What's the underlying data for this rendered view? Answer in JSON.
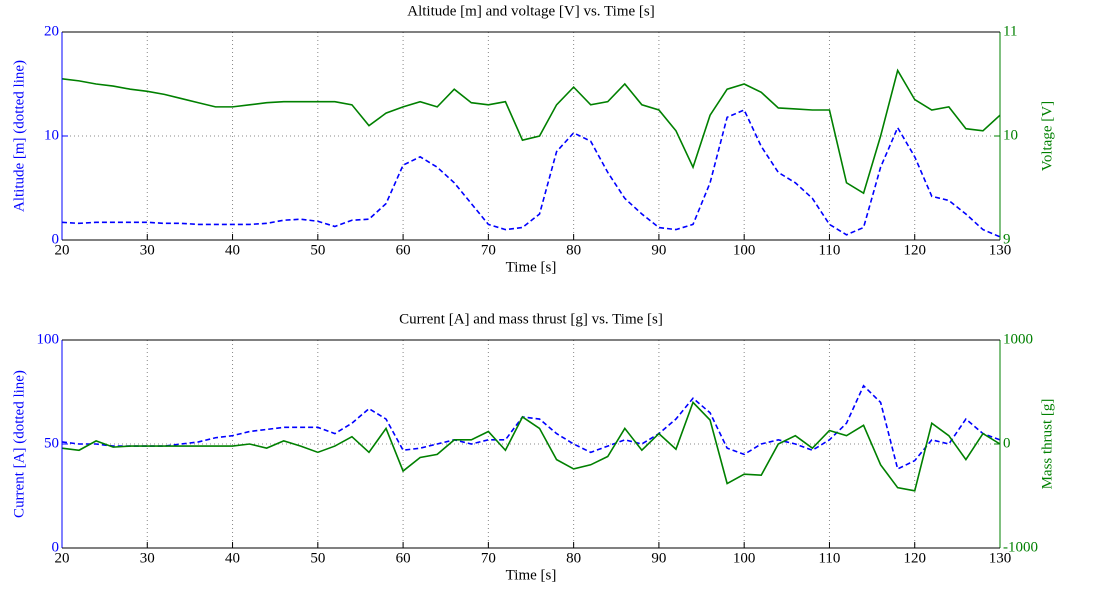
{
  "chart_data": [
    {
      "type": "line",
      "title": "Altitude [m] and voltage [V] vs. Time [s]",
      "xlabel": "Time [s]",
      "ylabel": "Altitude [m] (dotted line)",
      "y2label": "Voltage [V]",
      "x": [
        20,
        22,
        24,
        26,
        28,
        30,
        32,
        34,
        36,
        38,
        40,
        42,
        44,
        46,
        48,
        50,
        52,
        54,
        56,
        58,
        60,
        62,
        64,
        66,
        68,
        70,
        72,
        74,
        76,
        78,
        80,
        82,
        84,
        86,
        88,
        90,
        92,
        94,
        96,
        98,
        100,
        102,
        104,
        106,
        108,
        110,
        112,
        114,
        116,
        118,
        120,
        122,
        124,
        126,
        128,
        130
      ],
      "series": [
        {
          "color": "#0000ff",
          "dashed": true,
          "values": [
            1.7,
            1.6,
            1.7,
            1.7,
            1.7,
            1.7,
            1.6,
            1.6,
            1.5,
            1.5,
            1.5,
            1.5,
            1.6,
            1.9,
            2.0,
            1.8,
            1.3,
            1.9,
            2.0,
            3.5,
            7.2,
            8.0,
            7.0,
            5.5,
            3.5,
            1.5,
            1.0,
            1.2,
            2.5,
            8.5,
            10.3,
            9.5,
            6.5,
            4.0,
            2.5,
            1.2,
            1.0,
            1.5,
            5.5,
            11.8,
            12.5,
            9.0,
            6.5,
            5.5,
            4.0,
            1.5,
            0.5,
            1.2,
            7.0,
            10.8,
            8.0,
            4.2,
            3.8,
            2.5,
            1.0,
            0.3
          ]
        },
        {
          "color": "#008000",
          "dashed": false,
          "axis": "y2",
          "values": [
            10.55,
            10.53,
            10.5,
            10.48,
            10.45,
            10.43,
            10.4,
            10.36,
            10.32,
            10.28,
            10.28,
            10.3,
            10.32,
            10.33,
            10.33,
            10.33,
            10.33,
            10.3,
            10.1,
            10.22,
            10.28,
            10.33,
            10.28,
            10.45,
            10.32,
            10.3,
            10.33,
            9.96,
            10.0,
            10.3,
            10.47,
            10.3,
            10.33,
            10.5,
            10.3,
            10.25,
            10.05,
            9.7,
            10.2,
            10.45,
            10.5,
            10.42,
            10.27,
            10.26,
            10.25,
            10.25,
            9.55,
            9.45,
            10.0,
            10.63,
            10.35,
            10.25,
            10.28,
            10.07,
            10.05,
            10.2
          ]
        }
      ],
      "xlim": [
        20,
        130
      ],
      "xticks": [
        20,
        30,
        40,
        50,
        60,
        70,
        80,
        90,
        100,
        110,
        120,
        130
      ],
      "ylim": [
        0,
        20
      ],
      "yticks": [
        0,
        10,
        20
      ],
      "y2lim": [
        9,
        11
      ],
      "y2ticks": [
        9,
        10,
        11
      ],
      "grid": true
    },
    {
      "type": "line",
      "title": "Current [A] and mass thrust [g] vs. Time [s]",
      "xlabel": "Time [s]",
      "ylabel": "Current [A] (dotted line)",
      "y2label": "Mass thrust [g]",
      "x": [
        20,
        22,
        24,
        26,
        28,
        30,
        32,
        34,
        36,
        38,
        40,
        42,
        44,
        46,
        48,
        50,
        52,
        54,
        56,
        58,
        60,
        62,
        64,
        66,
        68,
        70,
        72,
        74,
        76,
        78,
        80,
        82,
        84,
        86,
        88,
        90,
        92,
        94,
        96,
        98,
        100,
        102,
        104,
        106,
        108,
        110,
        112,
        114,
        116,
        118,
        120,
        122,
        124,
        126,
        128,
        130
      ],
      "series": [
        {
          "color": "#0000ff",
          "dashed": true,
          "values": [
            51,
            50,
            50,
            49,
            49,
            49,
            49,
            50,
            51,
            53,
            54,
            56,
            57,
            58,
            58,
            58,
            55,
            60,
            67,
            62,
            47,
            48,
            50,
            52,
            50,
            52,
            52,
            63,
            62,
            55,
            50,
            46,
            49,
            52,
            50,
            55,
            62,
            72,
            65,
            48,
            45,
            50,
            52,
            50,
            47,
            52,
            60,
            78,
            70,
            38,
            42,
            52,
            50,
            62,
            55,
            52
          ]
        },
        {
          "color": "#008000",
          "dashed": false,
          "axis": "y2",
          "values": [
            -40,
            -60,
            30,
            -30,
            -20,
            -20,
            -20,
            -20,
            -20,
            -20,
            -20,
            0,
            -40,
            30,
            -20,
            -80,
            -20,
            70,
            -80,
            150,
            -260,
            -130,
            -100,
            40,
            40,
            120,
            -60,
            260,
            150,
            -150,
            -240,
            -200,
            -120,
            150,
            -60,
            100,
            -50,
            400,
            230,
            -380,
            -290,
            -300,
            0,
            80,
            -40,
            130,
            80,
            180,
            -200,
            -420,
            -450,
            200,
            80,
            -150,
            100,
            0
          ]
        }
      ],
      "xlim": [
        20,
        130
      ],
      "xticks": [
        20,
        30,
        40,
        50,
        60,
        70,
        80,
        90,
        100,
        110,
        120,
        130
      ],
      "ylim": [
        0,
        100
      ],
      "yticks": [
        0,
        50,
        100
      ],
      "y2lim": [
        -1000,
        1000
      ],
      "y2ticks": [
        -1000,
        0,
        1000
      ],
      "grid": true
    }
  ]
}
